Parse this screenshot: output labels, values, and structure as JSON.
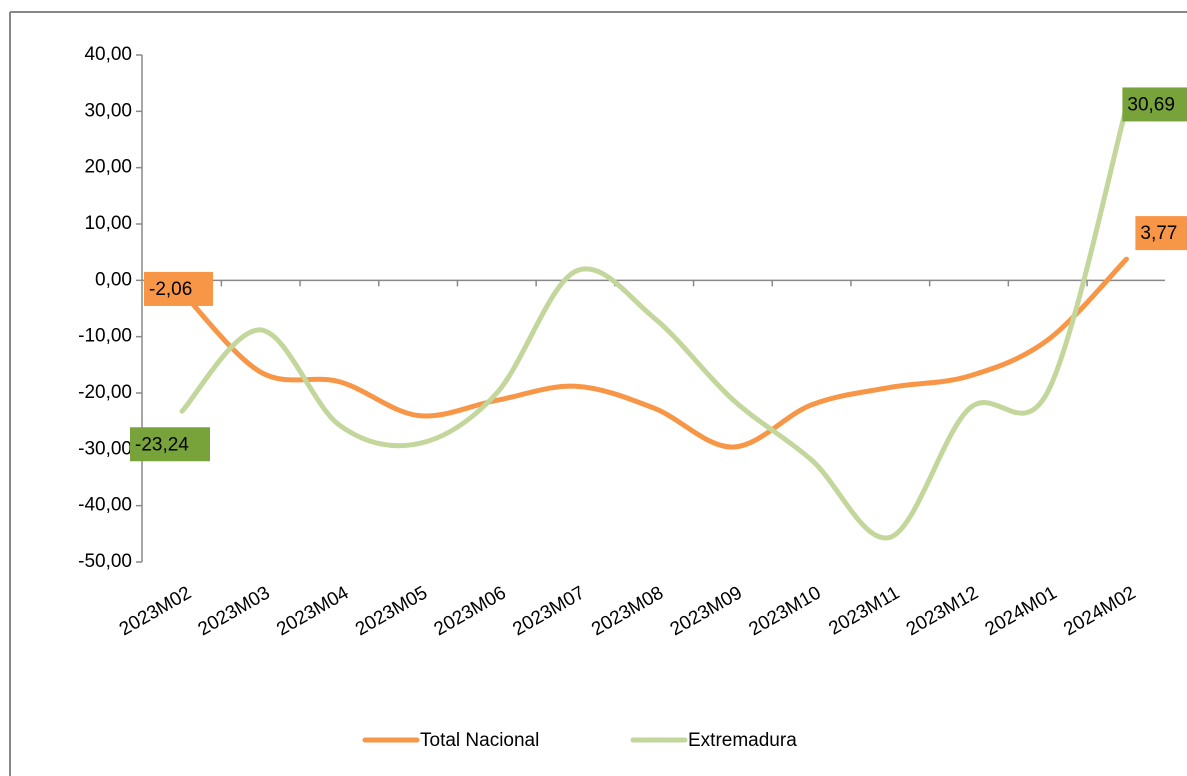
{
  "chart_data": {
    "type": "line",
    "categories": [
      "2023M02",
      "2023M03",
      "2023M04",
      "2023M05",
      "2023M06",
      "2023M07",
      "2023M08",
      "2023M09",
      "2023M10",
      "2023M11",
      "2023M12",
      "2024M01",
      "2024M02"
    ],
    "series": [
      {
        "name": "Total Nacional",
        "color": "#f79646",
        "values": [
          -2.06,
          -16.3,
          -18,
          -24,
          -21.3,
          -18.8,
          -22.7,
          -29.6,
          -22.1,
          -19,
          -17,
          -10.6,
          3.77
        ],
        "value_labels": [
          "-2,06",
          null,
          null,
          null,
          null,
          null,
          null,
          null,
          null,
          null,
          null,
          null,
          "3,77"
        ]
      },
      {
        "name": "Extremadura",
        "color": "#c3d69b",
        "label_color": "#77a33a",
        "values": [
          -23.24,
          -8.8,
          -25.7,
          -29,
          -20,
          1.6,
          -6.7,
          -21.2,
          -31.9,
          -45.6,
          -22.8,
          -19.8,
          30.69
        ],
        "value_labels": [
          "-23,24",
          null,
          null,
          null,
          null,
          null,
          null,
          null,
          null,
          null,
          null,
          null,
          "30,69"
        ]
      }
    ],
    "ylim": [
      -50,
      40
    ],
    "yticks": [
      {
        "value": -50,
        "label": "-50,00"
      },
      {
        "value": -40,
        "label": "-40,00"
      },
      {
        "value": -30,
        "label": "-30,00"
      },
      {
        "value": -20,
        "label": "-20,00"
      },
      {
        "value": -10,
        "label": "-10,00"
      },
      {
        "value": 0,
        "label": "0,00"
      },
      {
        "value": 10,
        "label": "10,00"
      },
      {
        "value": 20,
        "label": "20,00"
      },
      {
        "value": 30,
        "label": "30,00"
      },
      {
        "value": 40,
        "label": "40,00"
      }
    ],
    "smooth": true
  }
}
